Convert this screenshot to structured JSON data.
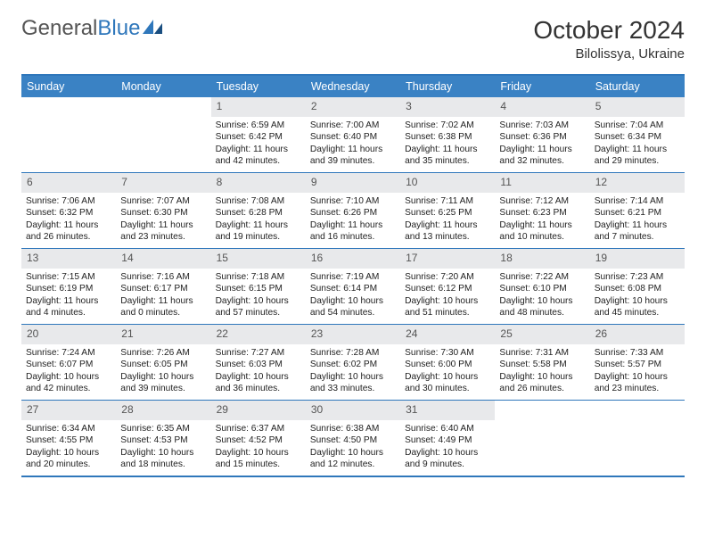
{
  "logo": {
    "general": "General",
    "blue": "Blue"
  },
  "title": "October 2024",
  "location": "Bilolissya, Ukraine",
  "dow": [
    "Sunday",
    "Monday",
    "Tuesday",
    "Wednesday",
    "Thursday",
    "Friday",
    "Saturday"
  ],
  "weeks": [
    [
      null,
      null,
      {
        "n": "1",
        "sr": "6:59 AM",
        "ss": "6:42 PM",
        "dl": "11 hours and 42 minutes."
      },
      {
        "n": "2",
        "sr": "7:00 AM",
        "ss": "6:40 PM",
        "dl": "11 hours and 39 minutes."
      },
      {
        "n": "3",
        "sr": "7:02 AM",
        "ss": "6:38 PM",
        "dl": "11 hours and 35 minutes."
      },
      {
        "n": "4",
        "sr": "7:03 AM",
        "ss": "6:36 PM",
        "dl": "11 hours and 32 minutes."
      },
      {
        "n": "5",
        "sr": "7:04 AM",
        "ss": "6:34 PM",
        "dl": "11 hours and 29 minutes."
      }
    ],
    [
      {
        "n": "6",
        "sr": "7:06 AM",
        "ss": "6:32 PM",
        "dl": "11 hours and 26 minutes."
      },
      {
        "n": "7",
        "sr": "7:07 AM",
        "ss": "6:30 PM",
        "dl": "11 hours and 23 minutes."
      },
      {
        "n": "8",
        "sr": "7:08 AM",
        "ss": "6:28 PM",
        "dl": "11 hours and 19 minutes."
      },
      {
        "n": "9",
        "sr": "7:10 AM",
        "ss": "6:26 PM",
        "dl": "11 hours and 16 minutes."
      },
      {
        "n": "10",
        "sr": "7:11 AM",
        "ss": "6:25 PM",
        "dl": "11 hours and 13 minutes."
      },
      {
        "n": "11",
        "sr": "7:12 AM",
        "ss": "6:23 PM",
        "dl": "11 hours and 10 minutes."
      },
      {
        "n": "12",
        "sr": "7:14 AM",
        "ss": "6:21 PM",
        "dl": "11 hours and 7 minutes."
      }
    ],
    [
      {
        "n": "13",
        "sr": "7:15 AM",
        "ss": "6:19 PM",
        "dl": "11 hours and 4 minutes."
      },
      {
        "n": "14",
        "sr": "7:16 AM",
        "ss": "6:17 PM",
        "dl": "11 hours and 0 minutes."
      },
      {
        "n": "15",
        "sr": "7:18 AM",
        "ss": "6:15 PM",
        "dl": "10 hours and 57 minutes."
      },
      {
        "n": "16",
        "sr": "7:19 AM",
        "ss": "6:14 PM",
        "dl": "10 hours and 54 minutes."
      },
      {
        "n": "17",
        "sr": "7:20 AM",
        "ss": "6:12 PM",
        "dl": "10 hours and 51 minutes."
      },
      {
        "n": "18",
        "sr": "7:22 AM",
        "ss": "6:10 PM",
        "dl": "10 hours and 48 minutes."
      },
      {
        "n": "19",
        "sr": "7:23 AM",
        "ss": "6:08 PM",
        "dl": "10 hours and 45 minutes."
      }
    ],
    [
      {
        "n": "20",
        "sr": "7:24 AM",
        "ss": "6:07 PM",
        "dl": "10 hours and 42 minutes."
      },
      {
        "n": "21",
        "sr": "7:26 AM",
        "ss": "6:05 PM",
        "dl": "10 hours and 39 minutes."
      },
      {
        "n": "22",
        "sr": "7:27 AM",
        "ss": "6:03 PM",
        "dl": "10 hours and 36 minutes."
      },
      {
        "n": "23",
        "sr": "7:28 AM",
        "ss": "6:02 PM",
        "dl": "10 hours and 33 minutes."
      },
      {
        "n": "24",
        "sr": "7:30 AM",
        "ss": "6:00 PM",
        "dl": "10 hours and 30 minutes."
      },
      {
        "n": "25",
        "sr": "7:31 AM",
        "ss": "5:58 PM",
        "dl": "10 hours and 26 minutes."
      },
      {
        "n": "26",
        "sr": "7:33 AM",
        "ss": "5:57 PM",
        "dl": "10 hours and 23 minutes."
      }
    ],
    [
      {
        "n": "27",
        "sr": "6:34 AM",
        "ss": "4:55 PM",
        "dl": "10 hours and 20 minutes."
      },
      {
        "n": "28",
        "sr": "6:35 AM",
        "ss": "4:53 PM",
        "dl": "10 hours and 18 minutes."
      },
      {
        "n": "29",
        "sr": "6:37 AM",
        "ss": "4:52 PM",
        "dl": "10 hours and 15 minutes."
      },
      {
        "n": "30",
        "sr": "6:38 AM",
        "ss": "4:50 PM",
        "dl": "10 hours and 12 minutes."
      },
      {
        "n": "31",
        "sr": "6:40 AM",
        "ss": "4:49 PM",
        "dl": "10 hours and 9 minutes."
      },
      null,
      null
    ]
  ],
  "labels": {
    "sunrise": "Sunrise: ",
    "sunset": "Sunset: ",
    "daylight": "Daylight: "
  },
  "style": {
    "accent": "#3a82c4",
    "border": "#2f77bb",
    "daynum_bg": "#e8e9eb",
    "text": "#222"
  }
}
